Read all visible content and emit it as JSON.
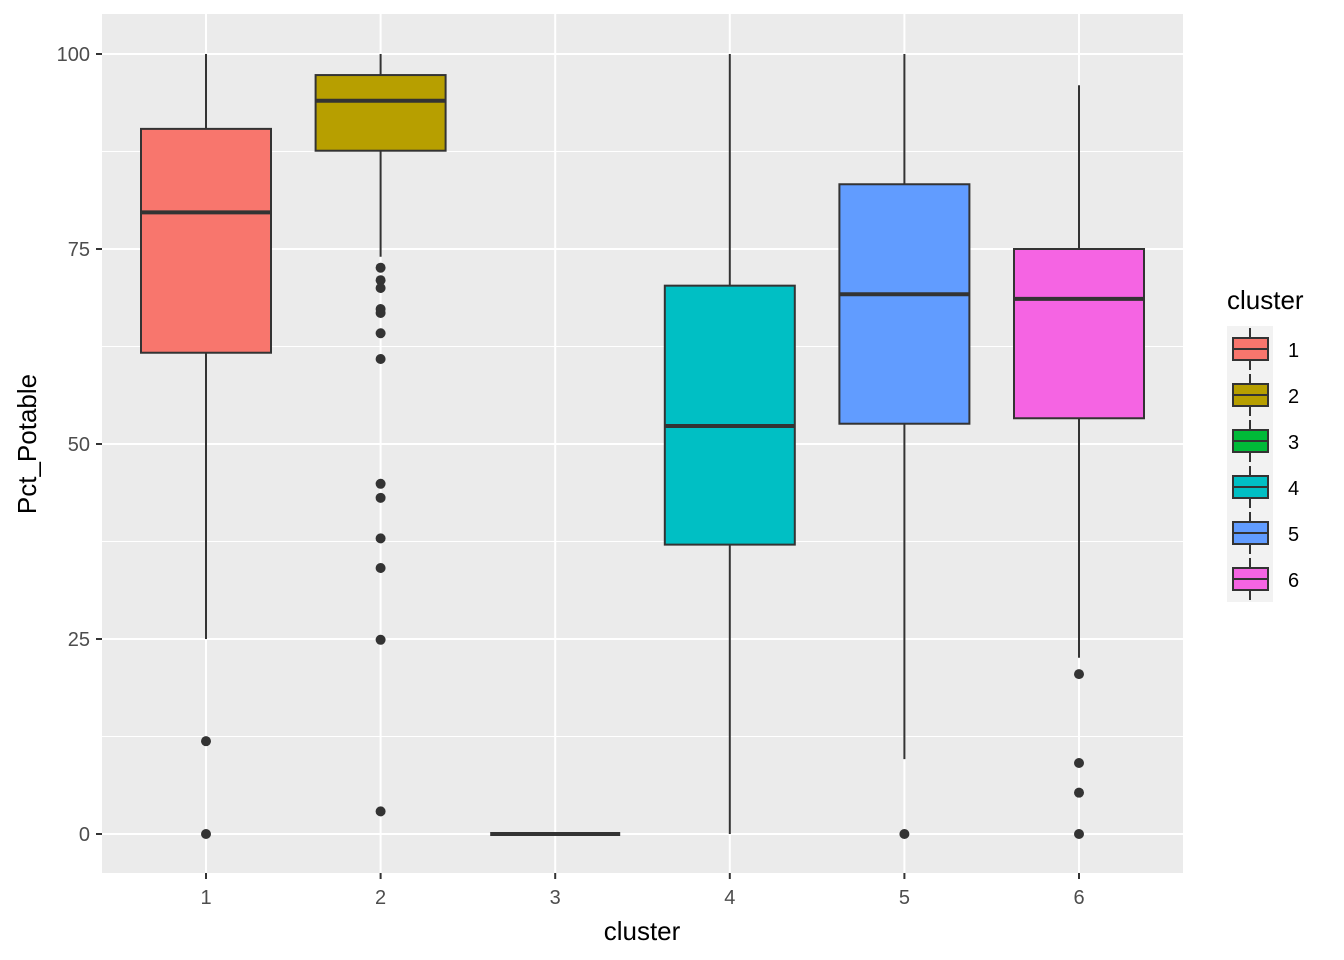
{
  "chart_data": {
    "type": "box",
    "title": "",
    "xlabel": "cluster",
    "ylabel": "Pct_Potable",
    "ylim": [
      -5,
      105
    ],
    "yticks": [
      0,
      25,
      50,
      75,
      100
    ],
    "categories": [
      "1",
      "2",
      "3",
      "4",
      "5",
      "6"
    ],
    "grid": true,
    "legend": {
      "title": "cluster",
      "position": "right",
      "entries": [
        "1",
        "2",
        "3",
        "4",
        "5",
        "6"
      ]
    },
    "colors": [
      "#F8766D",
      "#B79F00",
      "#00BA38",
      "#00BFC4",
      "#619CFF",
      "#F564E3"
    ],
    "boxes": [
      {
        "cluster": "1",
        "whisker_low": 25,
        "q1": 61.7,
        "median": 79.7,
        "q3": 90.4,
        "whisker_high": 100,
        "outliers": [
          11.9,
          0
        ]
      },
      {
        "cluster": "2",
        "whisker_low": 74,
        "q1": 87.6,
        "median": 94.0,
        "q3": 97.3,
        "whisker_high": 100,
        "outliers": [
          72.6,
          71.0,
          70.0,
          67.3,
          66.8,
          64.2,
          60.9,
          44.9,
          43.1,
          37.9,
          34.1,
          24.9,
          2.9
        ]
      },
      {
        "cluster": "3",
        "whisker_low": 0,
        "q1": 0,
        "median": 0,
        "q3": 0,
        "whisker_high": 0,
        "outliers": []
      },
      {
        "cluster": "4",
        "whisker_low": 0,
        "q1": 37.1,
        "median": 52.3,
        "q3": 70.3,
        "whisker_high": 100,
        "outliers": []
      },
      {
        "cluster": "5",
        "whisker_low": 9.6,
        "q1": 52.6,
        "median": 69.2,
        "q3": 83.3,
        "whisker_high": 100,
        "outliers": [
          0
        ]
      },
      {
        "cluster": "6",
        "whisker_low": 22.6,
        "q1": 53.3,
        "median": 68.6,
        "q3": 75.0,
        "whisker_high": 96.0,
        "outliers": [
          20.5,
          9.1,
          5.3,
          0
        ]
      }
    ]
  }
}
